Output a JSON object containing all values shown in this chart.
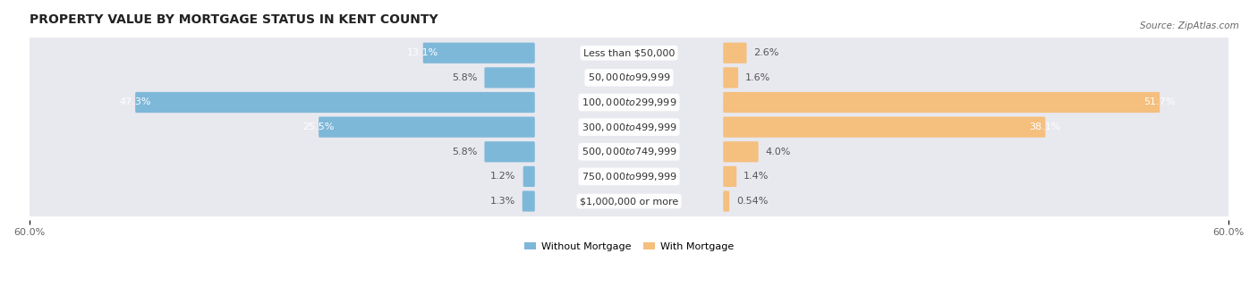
{
  "title": "PROPERTY VALUE BY MORTGAGE STATUS IN KENT COUNTY",
  "source": "Source: ZipAtlas.com",
  "categories": [
    "Less than $50,000",
    "$50,000 to $99,999",
    "$100,000 to $299,999",
    "$300,000 to $499,999",
    "$500,000 to $749,999",
    "$750,000 to $999,999",
    "$1,000,000 or more"
  ],
  "without_mortgage": [
    13.1,
    5.8,
    47.3,
    25.5,
    5.8,
    1.2,
    1.3
  ],
  "with_mortgage": [
    2.6,
    1.6,
    51.7,
    38.1,
    4.0,
    1.4,
    0.54
  ],
  "xlim": 60.0,
  "bar_color_left": "#7eb8d9",
  "bar_color_right": "#f5bf7e",
  "bg_row_color_dark": "#dcdce3",
  "bg_row_color_light": "#e8e8ef",
  "title_fontsize": 10,
  "label_fontsize": 8,
  "tick_fontsize": 8,
  "category_fontsize": 8,
  "value_fontsize": 8,
  "legend_label_left": "Without Mortgage",
  "legend_label_right": "With Mortgage",
  "value_color_inside": "#ffffff",
  "value_color_outside": "#555555"
}
